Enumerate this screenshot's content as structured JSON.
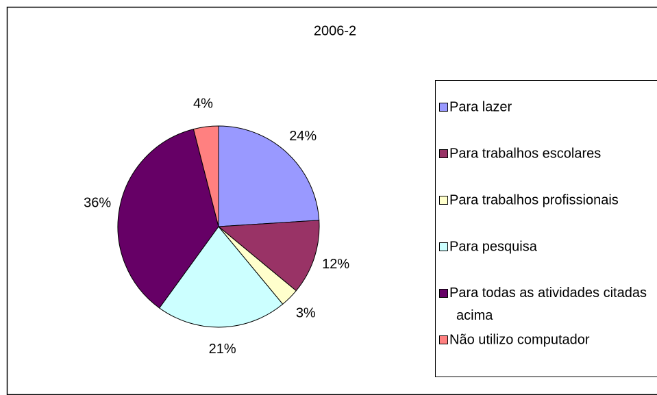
{
  "chart_data": {
    "type": "pie",
    "title": "2006-2",
    "categories": [
      "Para lazer",
      "Para trabalhos escolares",
      "Para trabalhos profissionais",
      "Para pesquisa",
      "Para todas as atividades citadas acima",
      "Não utilizo computador"
    ],
    "values": [
      24,
      12,
      3,
      21,
      36,
      4
    ],
    "value_labels": [
      "24%",
      "12%",
      "3%",
      "21%",
      "36%",
      "4%"
    ],
    "colors": [
      "#9999ff",
      "#993366",
      "#ffffcc",
      "#ccffff",
      "#660066",
      "#ff8080"
    ],
    "legend": "right"
  }
}
